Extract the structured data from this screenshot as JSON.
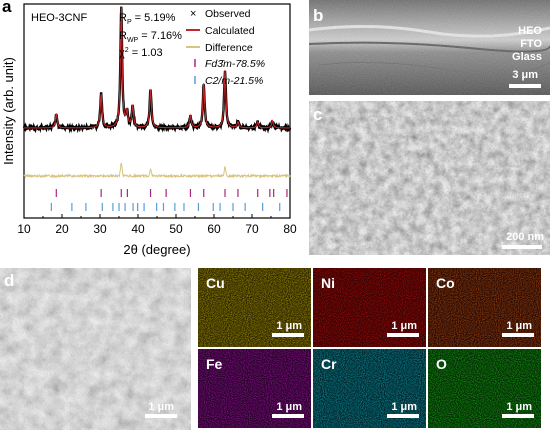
{
  "panels": {
    "a": {
      "label": "a"
    },
    "b": {
      "label": "b",
      "layers": [
        "HEO",
        "FTO",
        "Glass"
      ],
      "scale": "3 μm"
    },
    "c": {
      "label": "c",
      "scale": "200 nm"
    },
    "d": {
      "label": "d",
      "scale": "1 μm"
    },
    "maps": [
      {
        "element": "Cu",
        "scale": "1 μm",
        "color": "#c8b400"
      },
      {
        "element": "Ni",
        "scale": "1 μm",
        "color": "#d41010"
      },
      {
        "element": "Co",
        "scale": "1 μm",
        "color": "#c05818"
      },
      {
        "element": "Fe",
        "scale": "1 μm",
        "color": "#b418b8"
      },
      {
        "element": "Cr",
        "scale": "1 μm",
        "color": "#10b4c4"
      },
      {
        "element": "O",
        "scale": "1 μm",
        "color": "#20c020"
      }
    ]
  },
  "chart_data": {
    "type": "line",
    "sample_label": "HEO-3CNF",
    "xlabel": "2θ (degree)",
    "ylabel": "Intensity (arb. unit)",
    "xlim": [
      10,
      80
    ],
    "xticks": [
      "10",
      "20",
      "30",
      "40",
      "50",
      "60",
      "70",
      "80"
    ],
    "stats": [
      "Rₚ = 5.19%",
      "Rᵤₚ = 7.16%",
      "χ² = 1.03"
    ],
    "stats_display": {
      "rp": {
        "sym": "R",
        "sub": "P",
        "val": " = 5.19%"
      },
      "rwp": {
        "sym": "R",
        "sub": "WP",
        "val": " = 7.16%"
      },
      "chi": {
        "sym": "χ",
        "sup": "2",
        "val": " = 1.03"
      }
    },
    "legend": {
      "observed": "Observed",
      "calculated": "Calculated",
      "difference": "Difference",
      "phase1": "Fd3̄m-78.5%",
      "phase2": "C2/m-21.5%"
    },
    "peaks": [
      {
        "x": 18.5,
        "h": 0.12
      },
      {
        "x": 30.3,
        "h": 0.28
      },
      {
        "x": 35.6,
        "h": 1.0
      },
      {
        "x": 37.1,
        "h": 0.12
      },
      {
        "x": 38.6,
        "h": 0.18
      },
      {
        "x": 43.3,
        "h": 0.32
      },
      {
        "x": 53.8,
        "h": 0.1
      },
      {
        "x": 57.3,
        "h": 0.37
      },
      {
        "x": 62.9,
        "h": 0.48
      },
      {
        "x": 66.3,
        "h": 0.05
      },
      {
        "x": 71.5,
        "h": 0.05
      },
      {
        "x": 75.4,
        "h": 0.06
      }
    ],
    "difference_features": [
      {
        "x": 35.6,
        "d": 0.12
      },
      {
        "x": 43.3,
        "d": 0.06
      },
      {
        "x": 62.9,
        "d": 0.08
      }
    ],
    "phase1_ticks": [
      18.5,
      30.3,
      35.6,
      37.2,
      43.3,
      47.4,
      53.8,
      57.3,
      62.9,
      66.3,
      71.5,
      74.7,
      75.7,
      79.2
    ],
    "phase2_ticks": [
      17.2,
      22.6,
      26.3,
      30.6,
      33.4,
      35.0,
      36.6,
      38.7,
      39.9,
      41.6,
      44.9,
      46.7,
      49.7,
      52.1,
      55.9,
      59.8,
      61.6,
      65.0,
      68.2,
      72.8,
      77.3
    ],
    "colors": {
      "observed": "#000000",
      "calculated": "#c0282a",
      "difference": "#d8c480",
      "phase1": "#a8287a",
      "phase2": "#5a9cd8"
    }
  }
}
